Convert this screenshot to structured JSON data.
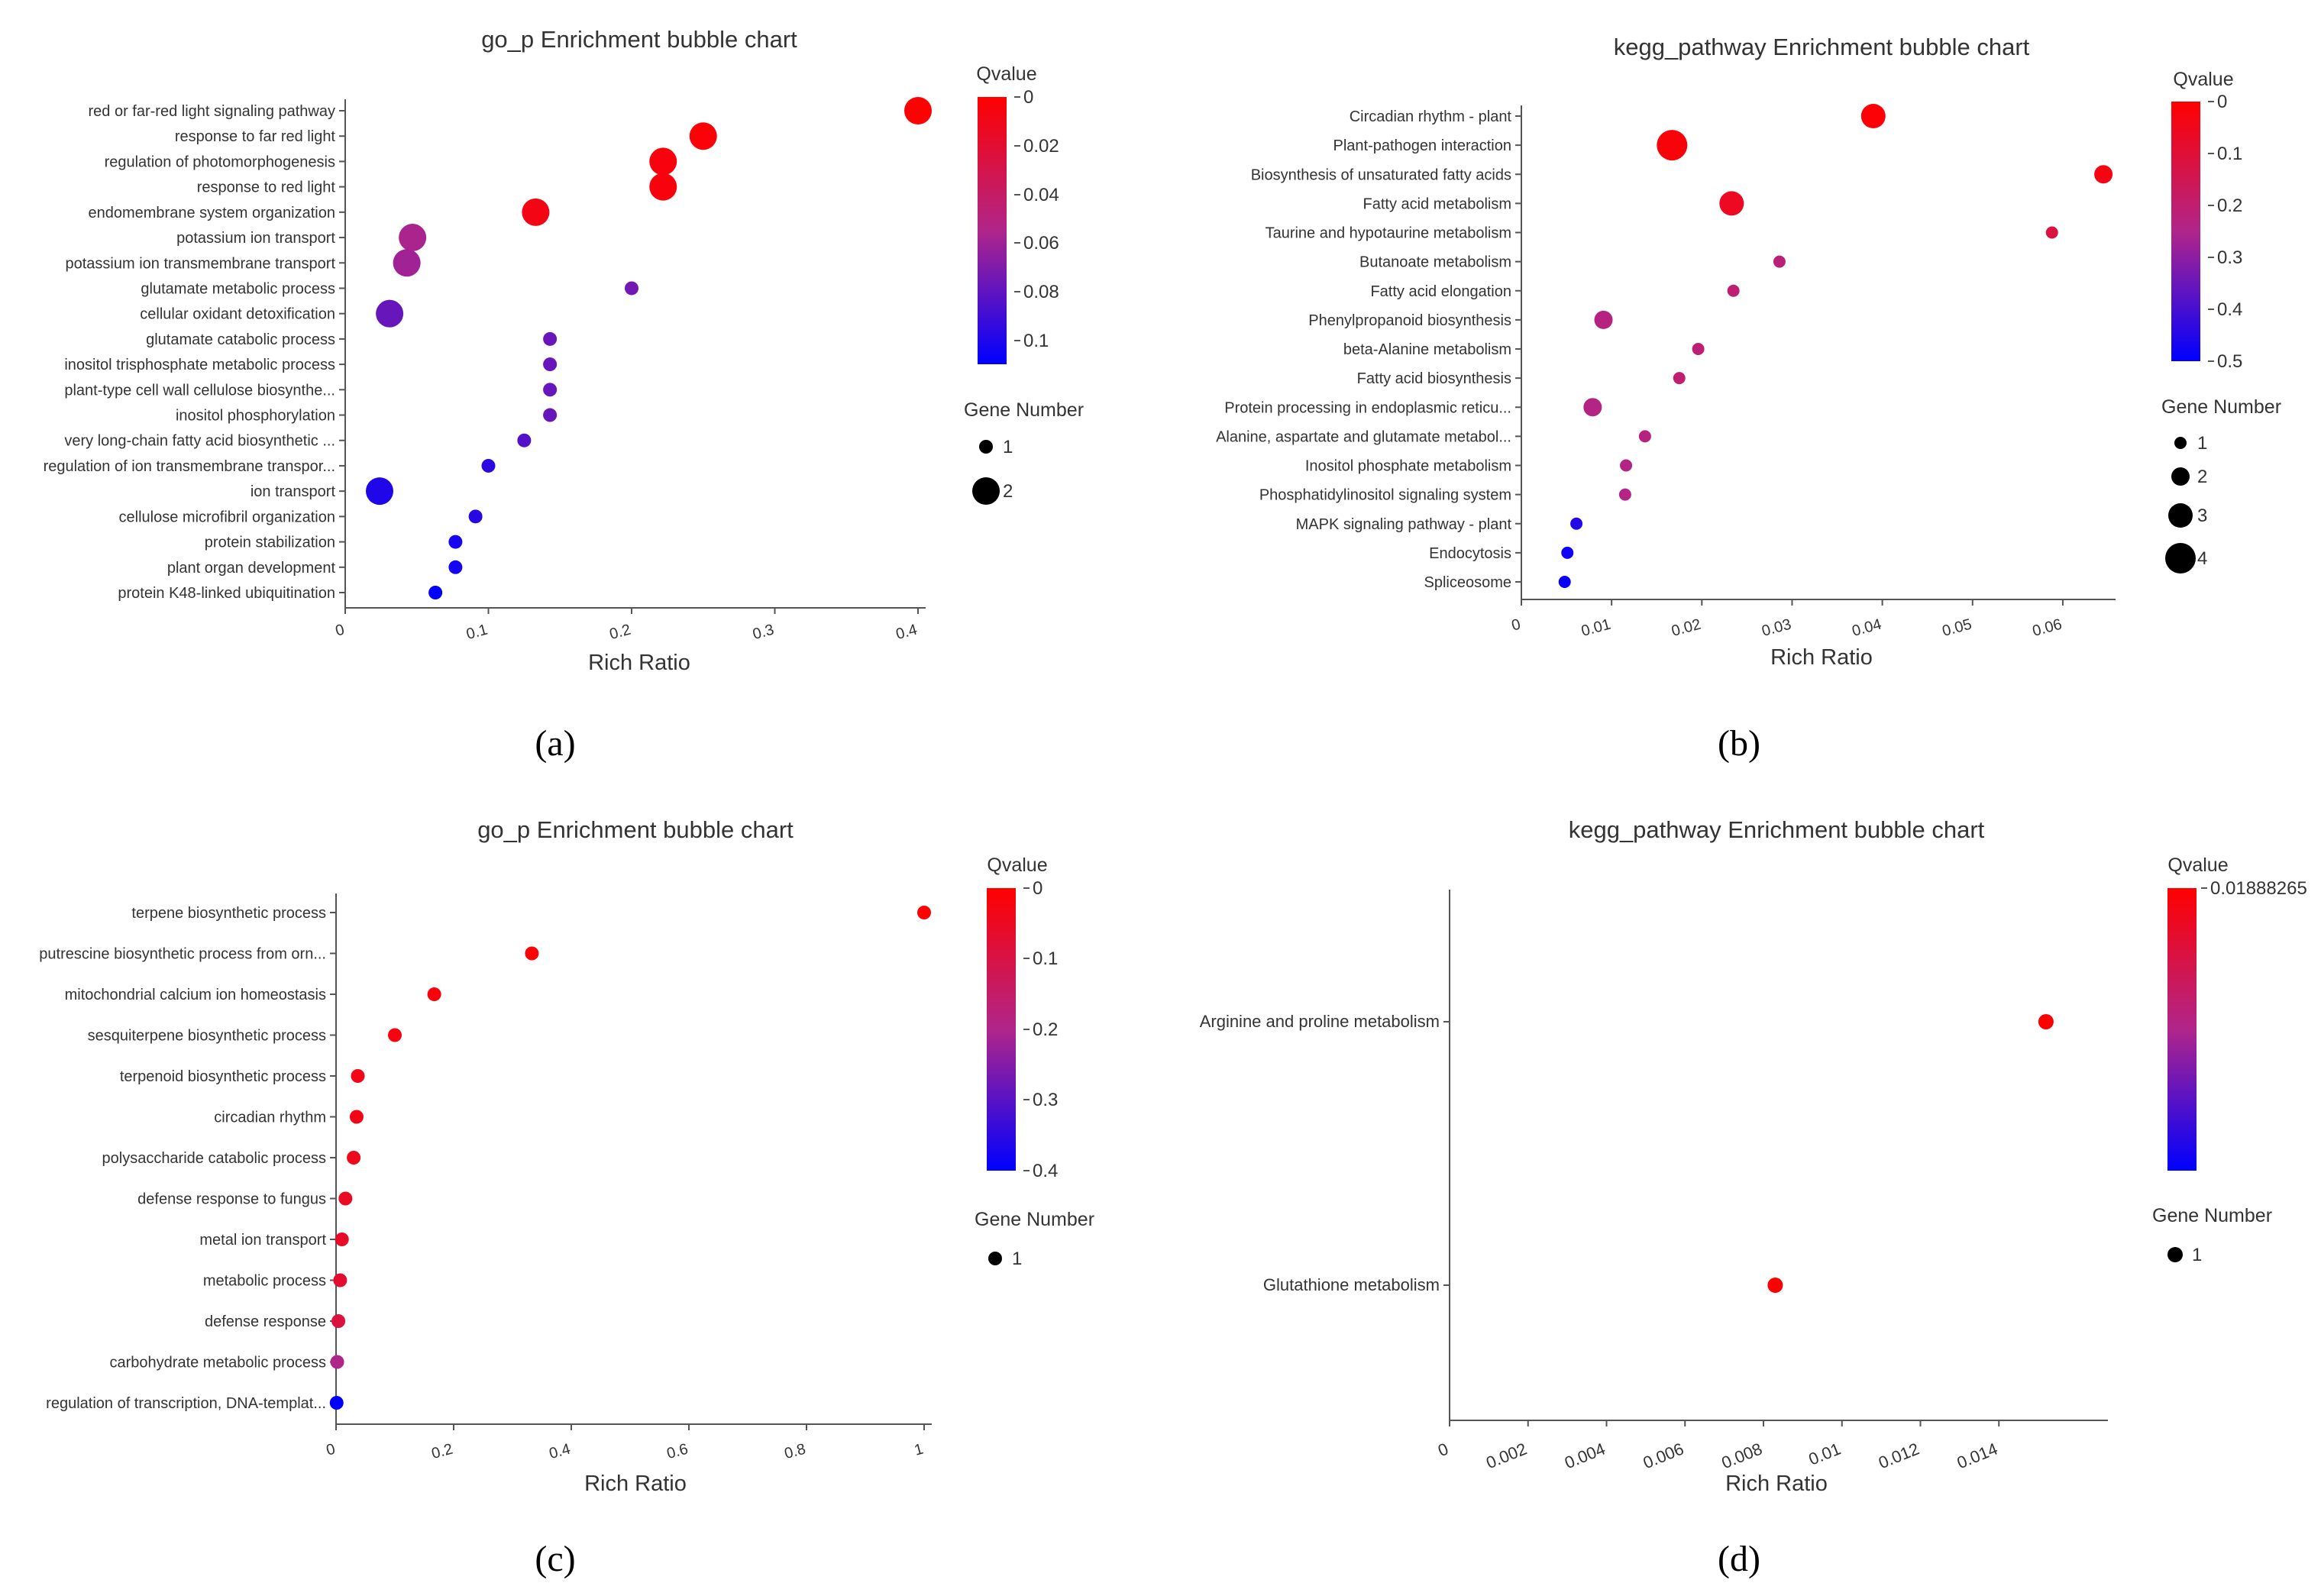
{
  "colors": {
    "qvalue_low": "#ff0000",
    "qvalue_mid": "#b0258a",
    "qvalue_high": "#0000ff",
    "axis": "#555555",
    "text": "#333333"
  },
  "chart_data": [
    {
      "type": "scatter",
      "panel_label": "(a)",
      "title": "go_p Enrichment bubble chart",
      "xlabel": "Rich Ratio",
      "xlim": [
        0,
        0.4
      ],
      "xticks": [
        "0",
        "0.1",
        "0.2",
        "0.3",
        "0.4"
      ],
      "qvalue_legend": {
        "title": "Qvalue",
        "range": [
          0,
          0.11
        ],
        "ticks": [
          "0",
          "0.02",
          "0.04",
          "0.06",
          "0.08",
          "0.1"
        ]
      },
      "size_legend": {
        "title": "Gene Number",
        "values": [
          "1",
          "2"
        ]
      },
      "categories": [
        "red or far-red light signaling pathway",
        "response to far red light",
        "regulation of photomorphogenesis",
        "response to red light",
        "endomembrane system organization",
        "potassium ion transport",
        "potassium ion transmembrane transport",
        "glutamate metabolic process",
        "cellular oxidant detoxification",
        "glutamate catabolic process",
        "inositol trisphosphate metabolic process",
        "plant-type cell wall cellulose biosynthe...",
        "inositol phosphorylation",
        "very long-chain fatty acid biosynthetic ...",
        "regulation of ion transmembrane transpor...",
        "ion transport",
        "cellulose microfibril organization",
        "protein stabilization",
        "plant organ development",
        "protein K48-linked ubiquitination"
      ],
      "x": [
        0.4,
        0.25,
        0.222,
        0.222,
        0.133,
        0.047,
        0.043,
        0.2,
        0.031,
        0.143,
        0.143,
        0.143,
        0.143,
        0.125,
        0.1,
        0.024,
        0.091,
        0.077,
        0.077,
        0.063
      ],
      "q": [
        0.001,
        0.003,
        0.005,
        0.005,
        0.008,
        0.057,
        0.06,
        0.074,
        0.078,
        0.078,
        0.078,
        0.078,
        0.078,
        0.084,
        0.096,
        0.1,
        0.098,
        0.103,
        0.103,
        0.11
      ],
      "genes": [
        2,
        2,
        2,
        2,
        2,
        2,
        2,
        1,
        2,
        1,
        1,
        1,
        1,
        1,
        1,
        2,
        1,
        1,
        1,
        1
      ]
    },
    {
      "type": "scatter",
      "panel_label": "(b)",
      "title": "kegg_pathway Enrichment bubble chart",
      "xlabel": "Rich Ratio",
      "xlim": [
        0,
        0.065
      ],
      "xticks": [
        "0",
        "0.01",
        "0.02",
        "0.03",
        "0.04",
        "0.05",
        "0.06"
      ],
      "qvalue_legend": {
        "title": "Qvalue",
        "range": [
          0,
          0.5
        ],
        "ticks": [
          "0",
          "0.1",
          "0.2",
          "0.3",
          "0.4",
          "0.5"
        ]
      },
      "size_legend": {
        "title": "Gene Number",
        "values": [
          "1",
          "2",
          "3",
          "4"
        ]
      },
      "categories": [
        "Circadian rhythm - plant",
        "Plant-pathogen interaction",
        "Biosynthesis of unsaturated fatty acids",
        "Fatty acid metabolism",
        "Taurine and hypotaurine metabolism",
        "Butanoate metabolism",
        "Fatty acid elongation",
        "Phenylpropanoid biosynthesis",
        "beta-Alanine metabolism",
        "Fatty acid biosynthesis",
        "Protein processing in endoplasmic reticu...",
        "Alanine, aspartate and glutamate metabol...",
        "Inositol phosphate metabolism",
        "Phosphatidylinositol signaling system",
        "MAPK signaling pathway - plant",
        "Endocytosis",
        "Spliceosome"
      ],
      "x": [
        0.039,
        0.0167,
        0.0645,
        0.0233,
        0.0588,
        0.0286,
        0.0235,
        0.0091,
        0.0196,
        0.0175,
        0.0079,
        0.0137,
        0.0116,
        0.0115,
        0.0061,
        0.0051,
        0.0048
      ],
      "q": [
        0.01,
        0.02,
        0.03,
        0.06,
        0.12,
        0.22,
        0.21,
        0.23,
        0.21,
        0.2,
        0.24,
        0.23,
        0.24,
        0.24,
        0.45,
        0.48,
        0.49
      ],
      "genes": [
        3,
        4,
        2,
        3,
        1,
        1,
        1,
        2,
        1,
        1,
        2,
        1,
        1,
        1,
        1,
        1,
        1
      ]
    },
    {
      "type": "scatter",
      "panel_label": "(c)",
      "title": "go_p Enrichment bubble chart",
      "xlabel": "Rich Ratio",
      "xlim": [
        0,
        1
      ],
      "xticks": [
        "0",
        "0.2",
        "0.4",
        "0.6",
        "0.8",
        "1"
      ],
      "qvalue_legend": {
        "title": "Qvalue",
        "range": [
          0,
          0.4
        ],
        "ticks": [
          "0",
          "0.1",
          "0.2",
          "0.3",
          "0.4"
        ]
      },
      "size_legend": {
        "title": "Gene Number",
        "values": [
          "1"
        ]
      },
      "categories": [
        "terpene biosynthetic process",
        "putrescine biosynthetic process from orn...",
        "mitochondrial calcium ion homeostasis",
        "sesquiterpene biosynthetic process",
        "terpenoid biosynthetic process",
        "circadian rhythm",
        "polysaccharide catabolic process",
        "defense response to fungus",
        "metal ion transport",
        "metabolic process",
        "defense response",
        "carbohydrate metabolic process",
        "regulation of transcription, DNA-templat..."
      ],
      "x": [
        1,
        0.333,
        0.167,
        0.1,
        0.037,
        0.035,
        0.03,
        0.016,
        0.01,
        0.007,
        0.004,
        0.002,
        0.001
      ],
      "q": [
        0.003,
        0.01,
        0.015,
        0.02,
        0.03,
        0.032,
        0.04,
        0.05,
        0.06,
        0.07,
        0.09,
        0.2,
        0.4
      ],
      "genes": [
        1,
        1,
        1,
        1,
        1,
        1,
        1,
        1,
        1,
        1,
        1,
        1,
        1
      ]
    },
    {
      "type": "scatter",
      "panel_label": "(d)",
      "title": "kegg_pathway Enrichment bubble chart",
      "xlabel": "Rich Ratio",
      "xlim": [
        0,
        0.016
      ],
      "xticks": [
        "0",
        "0.002",
        "0.004",
        "0.006",
        "0.008",
        "0.01",
        "0.012",
        "0.014"
      ],
      "qvalue_legend": {
        "title": "Qvalue",
        "range": [
          0,
          0.01888265
        ],
        "ticks": [
          "0.01888265"
        ]
      },
      "size_legend": {
        "title": "Gene Number",
        "values": [
          "1"
        ]
      },
      "categories": [
        "Arginine and proline metabolism",
        "Glutathione metabolism"
      ],
      "x": [
        0.0152,
        0.0083
      ],
      "q": [
        0.0189,
        0.0189
      ],
      "genes": [
        1,
        1
      ]
    }
  ]
}
